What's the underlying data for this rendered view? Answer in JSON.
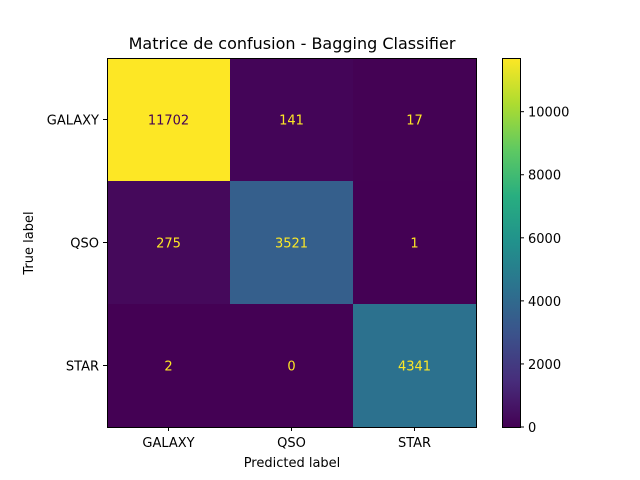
{
  "chart_data": {
    "type": "heatmap",
    "title": "Matrice de confusion - Bagging Classifier",
    "xlabel": "Predicted label",
    "ylabel": "True label",
    "x_categories": [
      "GALAXY",
      "QSO",
      "STAR"
    ],
    "y_categories": [
      "GALAXY",
      "QSO",
      "STAR"
    ],
    "values": [
      [
        11702,
        141,
        17
      ],
      [
        275,
        3521,
        1
      ],
      [
        2,
        0,
        4341
      ]
    ],
    "colormap": "viridis",
    "color_range": [
      0,
      11702
    ],
    "colorbar_ticks": [
      "0",
      "2000",
      "4000",
      "6000",
      "8000",
      "10000"
    ],
    "colorbar_tick_values": [
      0,
      2000,
      4000,
      6000,
      8000,
      10000
    ],
    "text_color_on_dark": "#fde725",
    "text_color_on_light": "#440154"
  }
}
